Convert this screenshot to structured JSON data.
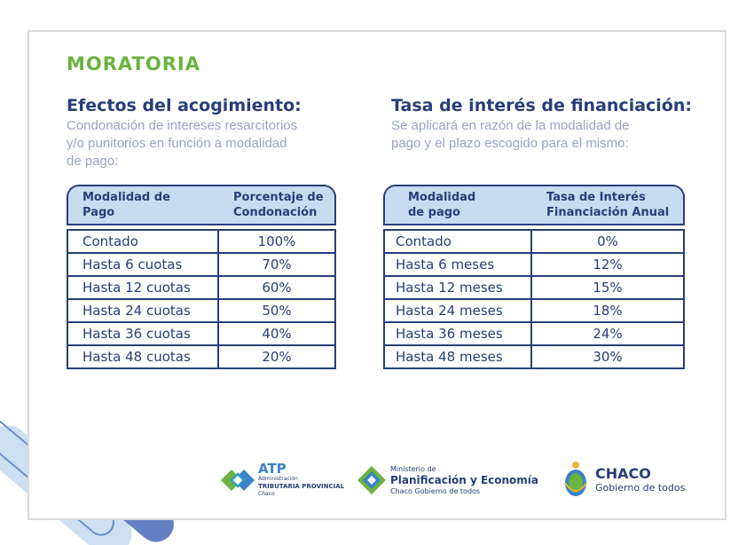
{
  "title": "MORATORIA",
  "left": {
    "heading": "Efectos del acogimiento:",
    "desc": [
      "Condonación de intereses resarcitorios",
      "y/o punitorios en función a modalidad",
      "de pago:"
    ],
    "col1": [
      "Modalidad de",
      "Pago"
    ],
    "col2": [
      "Porcentaje de",
      "Condonación"
    ],
    "rows": [
      [
        "Contado",
        "100%"
      ],
      [
        "Hasta 6 cuotas",
        "70%"
      ],
      [
        "Hasta 12 cuotas",
        "60%"
      ],
      [
        "Hasta 24 cuotas",
        "50%"
      ],
      [
        "Hasta 36 cuotas",
        "40%"
      ],
      [
        "Hasta 48 cuotas",
        "20%"
      ]
    ]
  },
  "right": {
    "heading": "Tasa de interés de financiación:",
    "desc": [
      "Se aplicará en razón de la modalidad de",
      "pago y el plazo escogido para el mismo:"
    ],
    "col1": [
      "Modalidad",
      "de pago"
    ],
    "col2": [
      "Tasa de Interés",
      "Financiación Anual"
    ],
    "rows": [
      [
        "Contado",
        "0%"
      ],
      [
        "Hasta 6 meses",
        "12%"
      ],
      [
        "Hasta 12 meses",
        "15%"
      ],
      [
        "Hasta 24 meses",
        "18%"
      ],
      [
        "Hasta 36 meses",
        "24%"
      ],
      [
        "Hasta 48 meses",
        "30%"
      ]
    ]
  },
  "logos": {
    "atp": {
      "big": "ATP",
      "l1": "Administración",
      "l2": "TRIBUTARIA PROVINCIAL",
      "l3": "Chaco"
    },
    "min": {
      "l1": "Ministerio de",
      "l2": "Planificación y Economía",
      "l3": "Chaco Gobierno de todos"
    },
    "chaco": {
      "big": "CHACO",
      "sub": "Gobierno de todos"
    }
  },
  "colors": {
    "green": "#6cb33f",
    "navy": "#283e78",
    "header_fill": "#c8dcf1",
    "desc_text": "#9aa3c2"
  }
}
